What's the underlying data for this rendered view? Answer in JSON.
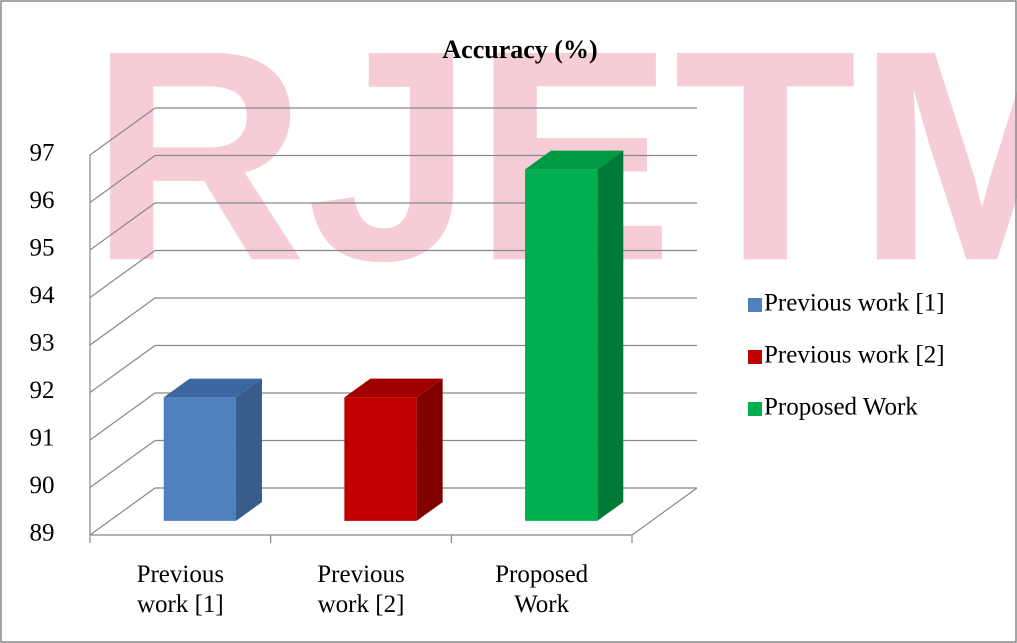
{
  "chart_data": {
    "type": "bar3d",
    "title": "Accuracy (%)",
    "watermark": "RJETM",
    "categories": [
      "Previous work [1]",
      "Previous work [2]",
      "Proposed Work"
    ],
    "series": [
      {
        "name": "Previous work [1]",
        "color": "#4f81bd"
      },
      {
        "name": "Previous work [2]",
        "color": "#c00000"
      },
      {
        "name": "Proposed Work",
        "color": "#00b050"
      }
    ],
    "values": [
      91.6,
      91.6,
      96.4
    ],
    "ylim": [
      89,
      97
    ],
    "yticks": [
      89,
      90,
      91,
      92,
      93,
      94,
      95,
      96,
      97
    ],
    "grid": true,
    "legend": "right"
  }
}
